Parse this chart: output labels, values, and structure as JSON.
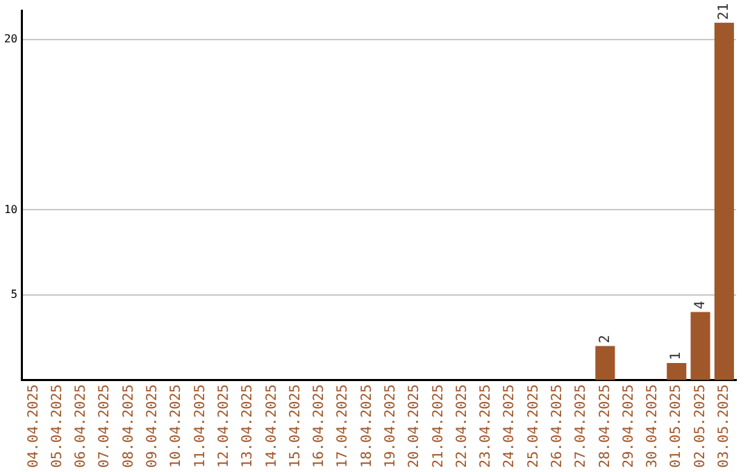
{
  "chart_data": {
    "type": "bar",
    "categories": [
      "04.04.2025",
      "05.04.2025",
      "06.04.2025",
      "07.04.2025",
      "08.04.2025",
      "09.04.2025",
      "10.04.2025",
      "11.04.2025",
      "12.04.2025",
      "13.04.2025",
      "14.04.2025",
      "15.04.2025",
      "16.04.2025",
      "17.04.2025",
      "18.04.2025",
      "19.04.2025",
      "20.04.2025",
      "21.04.2025",
      "22.04.2025",
      "23.04.2025",
      "24.04.2025",
      "25.04.2025",
      "26.04.2025",
      "27.04.2025",
      "28.04.2025",
      "29.04.2025",
      "30.04.2025",
      "01.05.2025",
      "02.05.2025",
      "03.05.2025"
    ],
    "values": [
      0,
      0,
      0,
      0,
      0,
      0,
      0,
      0,
      0,
      0,
      0,
      0,
      0,
      0,
      0,
      0,
      0,
      0,
      0,
      0,
      0,
      0,
      0,
      0,
      2,
      0,
      0,
      1,
      4,
      21
    ],
    "value_labels": [
      null,
      null,
      null,
      null,
      null,
      null,
      null,
      null,
      null,
      null,
      null,
      null,
      null,
      null,
      null,
      null,
      null,
      null,
      null,
      null,
      null,
      null,
      null,
      null,
      "2",
      null,
      null,
      "1",
      "4",
      "21"
    ],
    "color": "#a0572a",
    "ylim": [
      0,
      21.7
    ],
    "yticks": [
      5,
      10,
      20
    ],
    "grid": "y"
  }
}
